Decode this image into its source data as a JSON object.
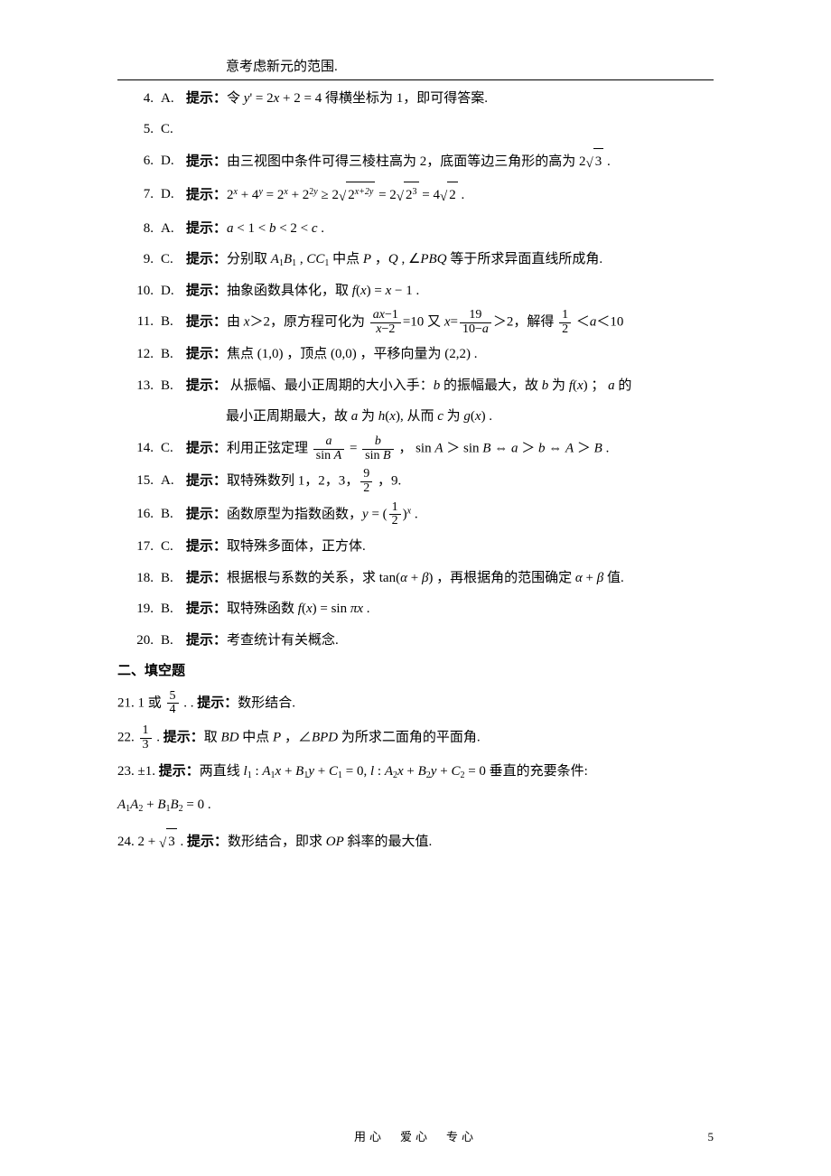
{
  "top_note": "意考虑新元的范围.",
  "items": [
    {
      "n": "4.",
      "a": "A.",
      "hint": "提示：",
      "body": "令 <span class='math'>y</span>' = 2<span class='math'>x</span> + 2 = 4 得横坐标为 1，即可得答案."
    },
    {
      "n": "5.",
      "a": "C.",
      "hint": "",
      "body": ""
    },
    {
      "n": "6.",
      "a": "D.",
      "hint": "提示：",
      "body": "由三视图中条件可得三棱柱高为 2，底面等边三角形的高为 2<span class='radical'>√</span><span class='sqrt'>3</span> ."
    },
    {
      "n": "7.",
      "a": "D.",
      "hint": "提示：",
      "body": "2<span class='sup math'>x</span> + 4<span class='sup math'>y</span> = 2<span class='sup math'>x</span> + 2<span class='sup'>2<span class='math'>y</span></span> ≥ 2<span class='radical'>√</span><span class='sqrt'>2<span class='sup math'>x+2y</span></span> = 2<span class='radical'>√</span><span class='sqrt'>2<span class='sup'>3</span></span> = 4<span class='radical'>√</span><span class='sqrt'>2</span> ."
    },
    {
      "n": "8.",
      "a": "A.",
      "hint": "提示：",
      "body": "<span class='math'>a</span> &lt; 1 &lt; <span class='math'>b</span> &lt; 2 &lt; <span class='math'>c</span> ."
    },
    {
      "n": "9.",
      "a": "C.",
      "hint": "提示：",
      "body": "分别取 <span class='math'>A</span><span class='sub'>1</span><span class='math'>B</span><span class='sub'>1</span> , <span class='math'>CC</span><span class='sub'>1</span> 中点 <span class='math'>P</span> ，<span class='math'>Q</span> , ∠<span class='math'>PBQ</span> 等于所求异面直线所成角."
    },
    {
      "n": "10.",
      "a": "D.",
      "hint": "提示：",
      "body": "抽象函数具体化，取 <span class='math'>f</span>(<span class='math'>x</span>) = <span class='math'>x</span> − 1 ."
    },
    {
      "n": "11.",
      "a": "B.",
      "hint": "提示：",
      "body": "由 <span class='math'>x</span>＞2，原方程可化为 <span class='frac'><span class='n'><span class='math'>ax</span>−1</span><span class='d'><span class='math'>x</span>−2</span></span>=10 又 <span class='math'>x</span>=<span class='frac'><span class='n'>19</span><span class='d'>10−<span class='math'>a</span></span></span>＞2，解得 <span class='frac'><span class='n'>1</span><span class='d'>2</span></span> ＜<span class='math'>a</span>＜10"
    },
    {
      "n": "12.",
      "a": "B.",
      "hint": "提示：",
      "body": "焦点 (1,0) ，顶点 (0,0) ，平移向量为 (2,2) ."
    },
    {
      "n": "13.",
      "a": "B.",
      "hint": "提示：",
      "body": "&nbsp;从振幅、最小正周期的大小入手：<span class='math'>b</span> 的振幅最大，故 <span class='math'>b</span> 为 <span class='math'>f</span>(<span class='math'>x</span>) ； <span class='math'>a</span> 的",
      "cont": "最小正周期最大，故 <span class='math'>a</span> 为 <span class='math'>h</span>(<span class='math'>x</span>), 从而 <span class='math'>c</span> 为 <span class='math'>g</span>(<span class='math'>x</span>) ."
    },
    {
      "n": "14.",
      "a": "C.",
      "hint": "提示：",
      "body": "利用正弦定理 <span class='frac'><span class='n math'>a</span><span class='d'>sin <span class='math'>A</span></span></span> = <span class='frac'><span class='n math'>b</span><span class='d'>sin <span class='math'>B</span></span></span> ， sin <span class='math'>A</span> ＞ sin <span class='math'>B</span> ⇔ <span class='math'>a</span> ＞ <span class='math'>b</span> ⇔ <span class='math'>A</span> ＞ <span class='math'>B</span> ."
    },
    {
      "n": "15.",
      "a": "A.",
      "hint": "提示：",
      "body": "取特殊数列 1，2，3，<span class='frac'><span class='n'>9</span><span class='d'>2</span></span> ，9."
    },
    {
      "n": "16.",
      "a": "B.",
      "hint": "提示：",
      "body": "函数原型为指数函数，<span class='math'>y</span> = (<span class='frac'><span class='n'>1</span><span class='d'>2</span></span>)<span class='sup math'>x</span> ."
    },
    {
      "n": "17.",
      "a": "C.",
      "hint": "提示：",
      "body": "取特殊多面体，正方体."
    },
    {
      "n": "18.",
      "a": "B.",
      "hint": "提示：",
      "body": "根据根与系数的关系，求 tan(<span class='math'>α</span> + <span class='math'>β</span>) ，再根据角的范围确定 <span class='math'>α</span> + <span class='math'>β</span> 值."
    },
    {
      "n": "19.",
      "a": "B.",
      "hint": "提示：",
      "body": "取特殊函数 <span class='math'>f</span>(<span class='math'>x</span>) = sin <span class='math'>πx</span> ."
    },
    {
      "n": "20.",
      "a": "B.",
      "hint": "提示：",
      "body": "考查统计有关概念."
    }
  ],
  "section2": "二、填空题",
  "fill": [
    {
      "n": "21.",
      "body": "1 或 <span class='frac'><span class='n'>5</span><span class='d'>4</span></span> . . <span class='bold'>提示：</span>数形结合."
    },
    {
      "n": "22.",
      "body": "<span class='frac'><span class='n'>1</span><span class='d'>3</span></span> . <span class='bold'>提示：</span>取 <span class='math'>BD</span> 中点 <span class='math'>P</span> ，∠<span class='math'>BPD</span> 为所求二面角的平面角."
    },
    {
      "n": "23.",
      "body": "±1. <span class='bold'>提示：</span>两直线 <span class='math'>l</span><span class='sub'>1</span> : <span class='math'>A</span><span class='sub'>1</span><span class='math'>x</span> + <span class='math'>B</span><span class='sub'>1</span><span class='math'>y</span> + <span class='math'>C</span><span class='sub'>1</span> = 0, <span class='math'>l</span> : <span class='math'>A</span><span class='sub'>2</span><span class='math'>x</span> + <span class='math'>B</span><span class='sub'>2</span><span class='math'>y</span> + <span class='math'>C</span><span class='sub'>2</span> = 0 垂直的充要条件:",
      "cont": "<span class='math'>A</span><span class='sub'>1</span><span class='math'>A</span><span class='sub'>2</span> + <span class='math'>B</span><span class='sub'>1</span><span class='math'>B</span><span class='sub'>2</span> = 0 ."
    },
    {
      "n": "24.",
      "body": "2 + <span class='radical'>√</span><span class='sqrt'>3</span> . <span class='bold'>提示：</span>数形结合，即求 <span class='math'>OP</span> 斜率的最大值."
    }
  ],
  "footer": "用心　爱心　专心",
  "pagenum": "5"
}
